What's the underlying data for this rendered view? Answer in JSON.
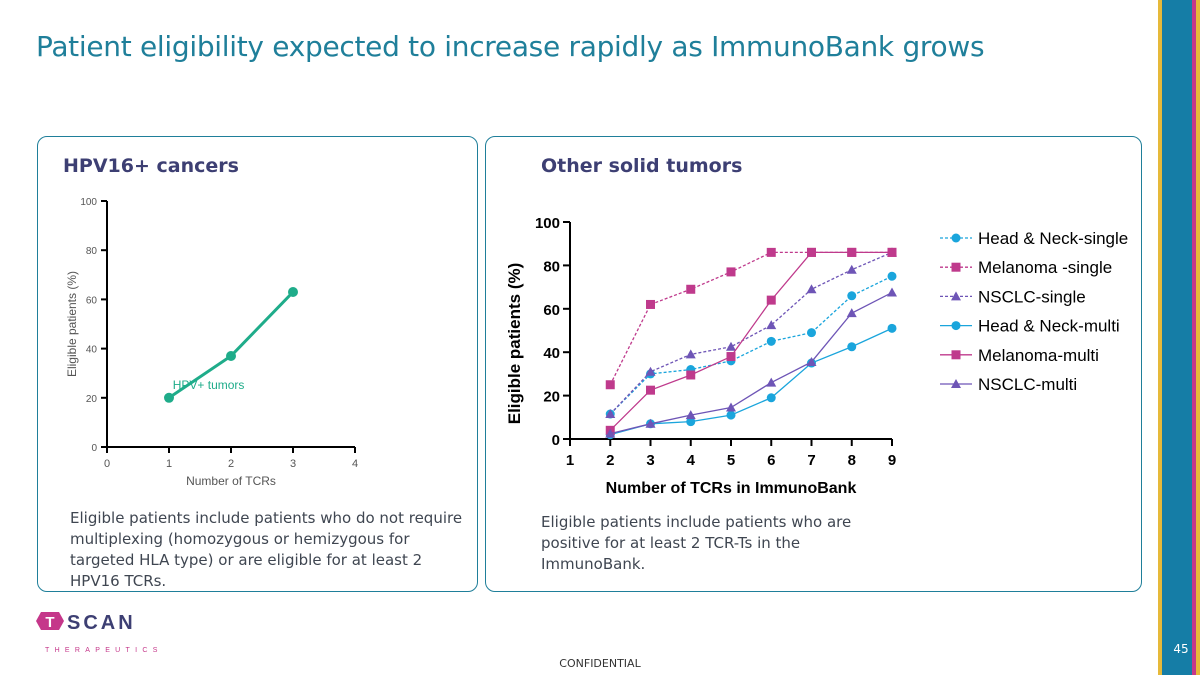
{
  "page": {
    "title": "Patient eligibility expected to increase rapidly as ImmunoBank grows",
    "confidential": "CONFIDENTIAL",
    "page_number": "45"
  },
  "logo": {
    "brand": "TSCAN",
    "sub": "THERAPEUTICS"
  },
  "left_panel": {
    "title": "HPV16+ cancers",
    "note": "Eligible patients include patients who do not require multiplexing (homozygous or hemizygous for targeted HLA type) or are eligible for at least 2 HPV16 TCRs."
  },
  "right_panel": {
    "title": "Other solid tumors",
    "note": "Eligible patients include patients who are positive for at least 2 TCR-Ts in the ImmunoBank."
  },
  "colors": {
    "teal": "#1f7f9a",
    "navy": "#3d3f73",
    "hpv_green": "#1fac8a",
    "head_neck": "#1aa5dc",
    "melanoma": "#bf3a8c",
    "nsclc": "#6e55b6"
  },
  "chart_data": [
    {
      "type": "line",
      "xlabel": "Number of TCRs",
      "ylabel": "Eligible patients (%)",
      "xlim": [
        0,
        4
      ],
      "ylim": [
        0,
        100
      ],
      "x_ticks": [
        "0",
        "1",
        "2",
        "3",
        "4"
      ],
      "y_ticks": [
        "0",
        "20",
        "40",
        "60",
        "80",
        "100"
      ],
      "annotation": "HPV+ tumors",
      "series": [
        {
          "x": [
            1,
            2,
            3
          ],
          "values": [
            20,
            37,
            63
          ],
          "color": "#1fac8a"
        }
      ]
    },
    {
      "type": "line",
      "xlabel": "Number of TCRs in ImmunoBank",
      "ylabel": "Eligible patients (%)",
      "xlim": [
        1,
        9
      ],
      "ylim": [
        0,
        100
      ],
      "categories": [
        "1",
        "2",
        "3",
        "4",
        "5",
        "6",
        "7",
        "8",
        "9"
      ],
      "y_ticks": [
        "0",
        "20",
        "40",
        "60",
        "80",
        "100"
      ],
      "legend_position": "right",
      "x": [
        2,
        3,
        4,
        5,
        6,
        7,
        8,
        9
      ],
      "series": [
        {
          "name": "Head & Neck-single",
          "marker": "circle",
          "dashed": true,
          "color": "#1aa5dc",
          "values": [
            11.5,
            30,
            32,
            36,
            45,
            49,
            66,
            75
          ]
        },
        {
          "name": "Melanoma -single",
          "marker": "square",
          "dashed": true,
          "color": "#bf3a8c",
          "values": [
            25,
            62,
            69,
            77,
            86,
            86,
            86,
            86
          ]
        },
        {
          "name": "NSCLC-single",
          "marker": "triangle",
          "dashed": true,
          "color": "#6e55b6",
          "values": [
            11.5,
            31,
            39,
            42.5,
            52.5,
            69,
            78,
            86
          ]
        },
        {
          "name": "Head & Neck-multi",
          "marker": "circle",
          "dashed": false,
          "color": "#1aa5dc",
          "values": [
            2,
            7,
            8,
            11,
            19,
            35,
            42.5,
            51
          ]
        },
        {
          "name": "Melanoma-multi",
          "marker": "square",
          "dashed": false,
          "color": "#bf3a8c",
          "values": [
            4,
            22.5,
            29.5,
            38,
            64,
            86,
            86,
            86
          ]
        },
        {
          "name": "NSCLC-multi",
          "marker": "triangle",
          "dashed": false,
          "color": "#6e55b6",
          "values": [
            2.5,
            7,
            11,
            14.5,
            26,
            35.5,
            58,
            67.5
          ]
        }
      ]
    }
  ]
}
